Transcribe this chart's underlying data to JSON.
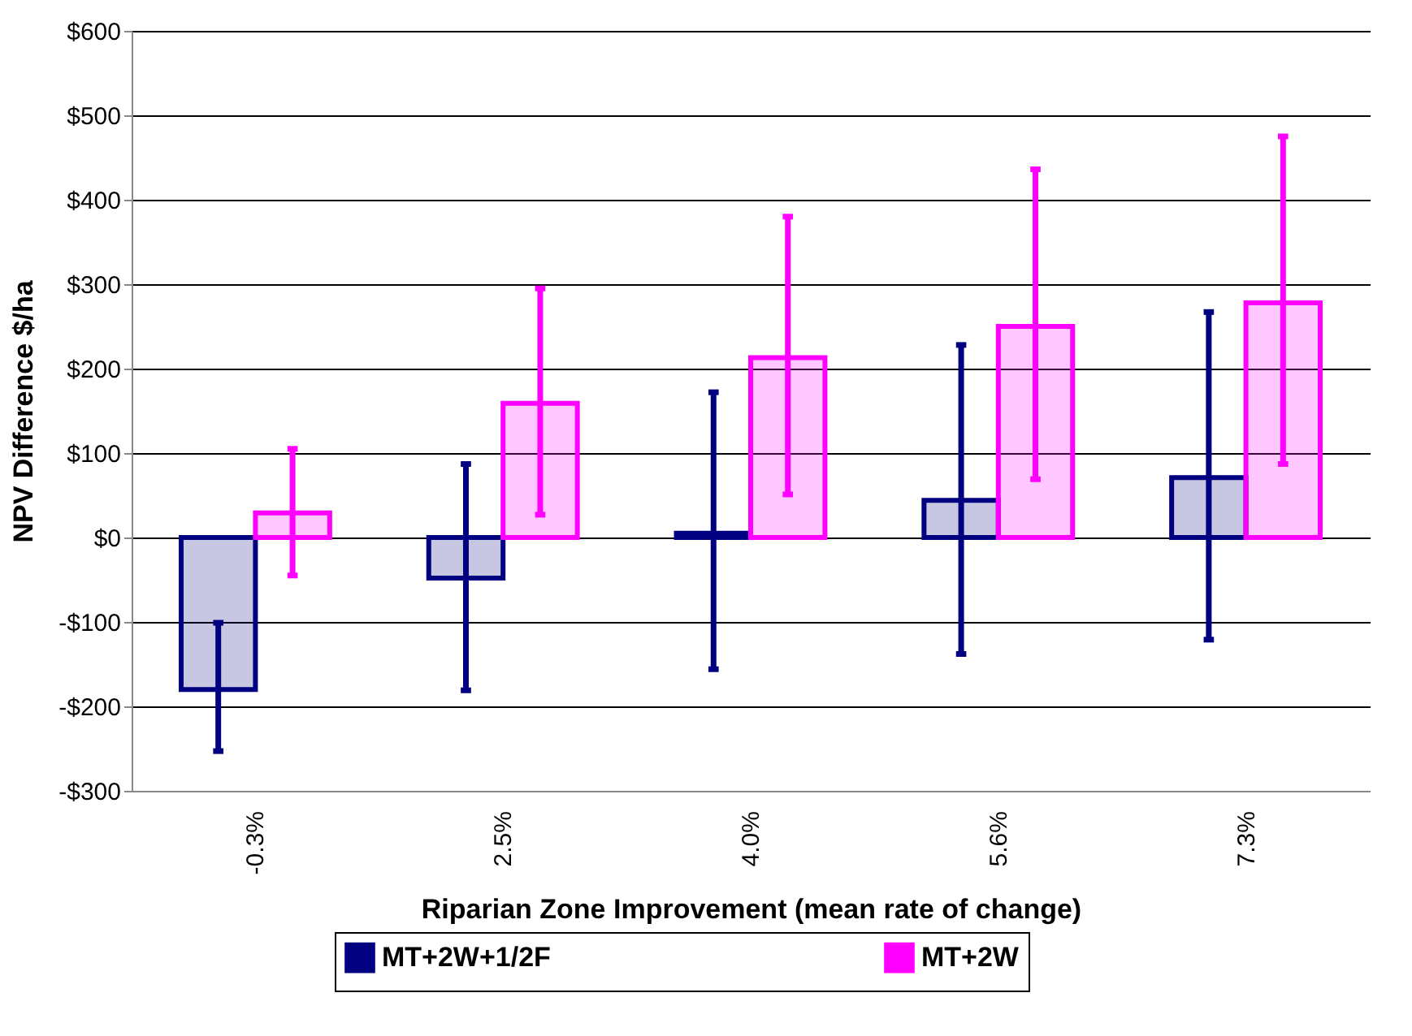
{
  "chart_data": {
    "type": "bar",
    "xlabel": "Riparian Zone Improvement (mean rate of change)",
    "ylabel": "NPV Difference $/ha",
    "categories": [
      "-0.3%",
      "2.5%",
      "4.0%",
      "5.6%",
      "7.3%"
    ],
    "series": [
      {
        "name": "MT+2W+1/2F",
        "color": "#000080",
        "values": [
          -180,
          -48,
          5,
          44,
          71
        ],
        "errors": [
          [
            -253,
            -101
          ],
          [
            -181,
            87
          ],
          [
            -156,
            172
          ],
          [
            -138,
            228
          ],
          [
            -121,
            267
          ]
        ]
      },
      {
        "name": "MT+2W",
        "color": "#ff00ff",
        "values": [
          29,
          159,
          213,
          250,
          278
        ],
        "errors": [
          [
            -45,
            105
          ],
          [
            27,
            295
          ],
          [
            51,
            380
          ],
          [
            69,
            436
          ],
          [
            87,
            475
          ]
        ]
      }
    ],
    "ylim": [
      -300,
      600
    ],
    "yticks": [
      {
        "value": -300,
        "label": "-$300"
      },
      {
        "value": -200,
        "label": "-$200"
      },
      {
        "value": -100,
        "label": "-$100"
      },
      {
        "value": 0,
        "label": "$0"
      },
      {
        "value": 100,
        "label": "$100"
      },
      {
        "value": 200,
        "label": "$200"
      },
      {
        "value": 300,
        "label": "$300"
      },
      {
        "value": 400,
        "label": "$400"
      },
      {
        "value": 500,
        "label": "$500"
      },
      {
        "value": 600,
        "label": "$600"
      }
    ],
    "grid": "y",
    "legend": "bottom"
  }
}
